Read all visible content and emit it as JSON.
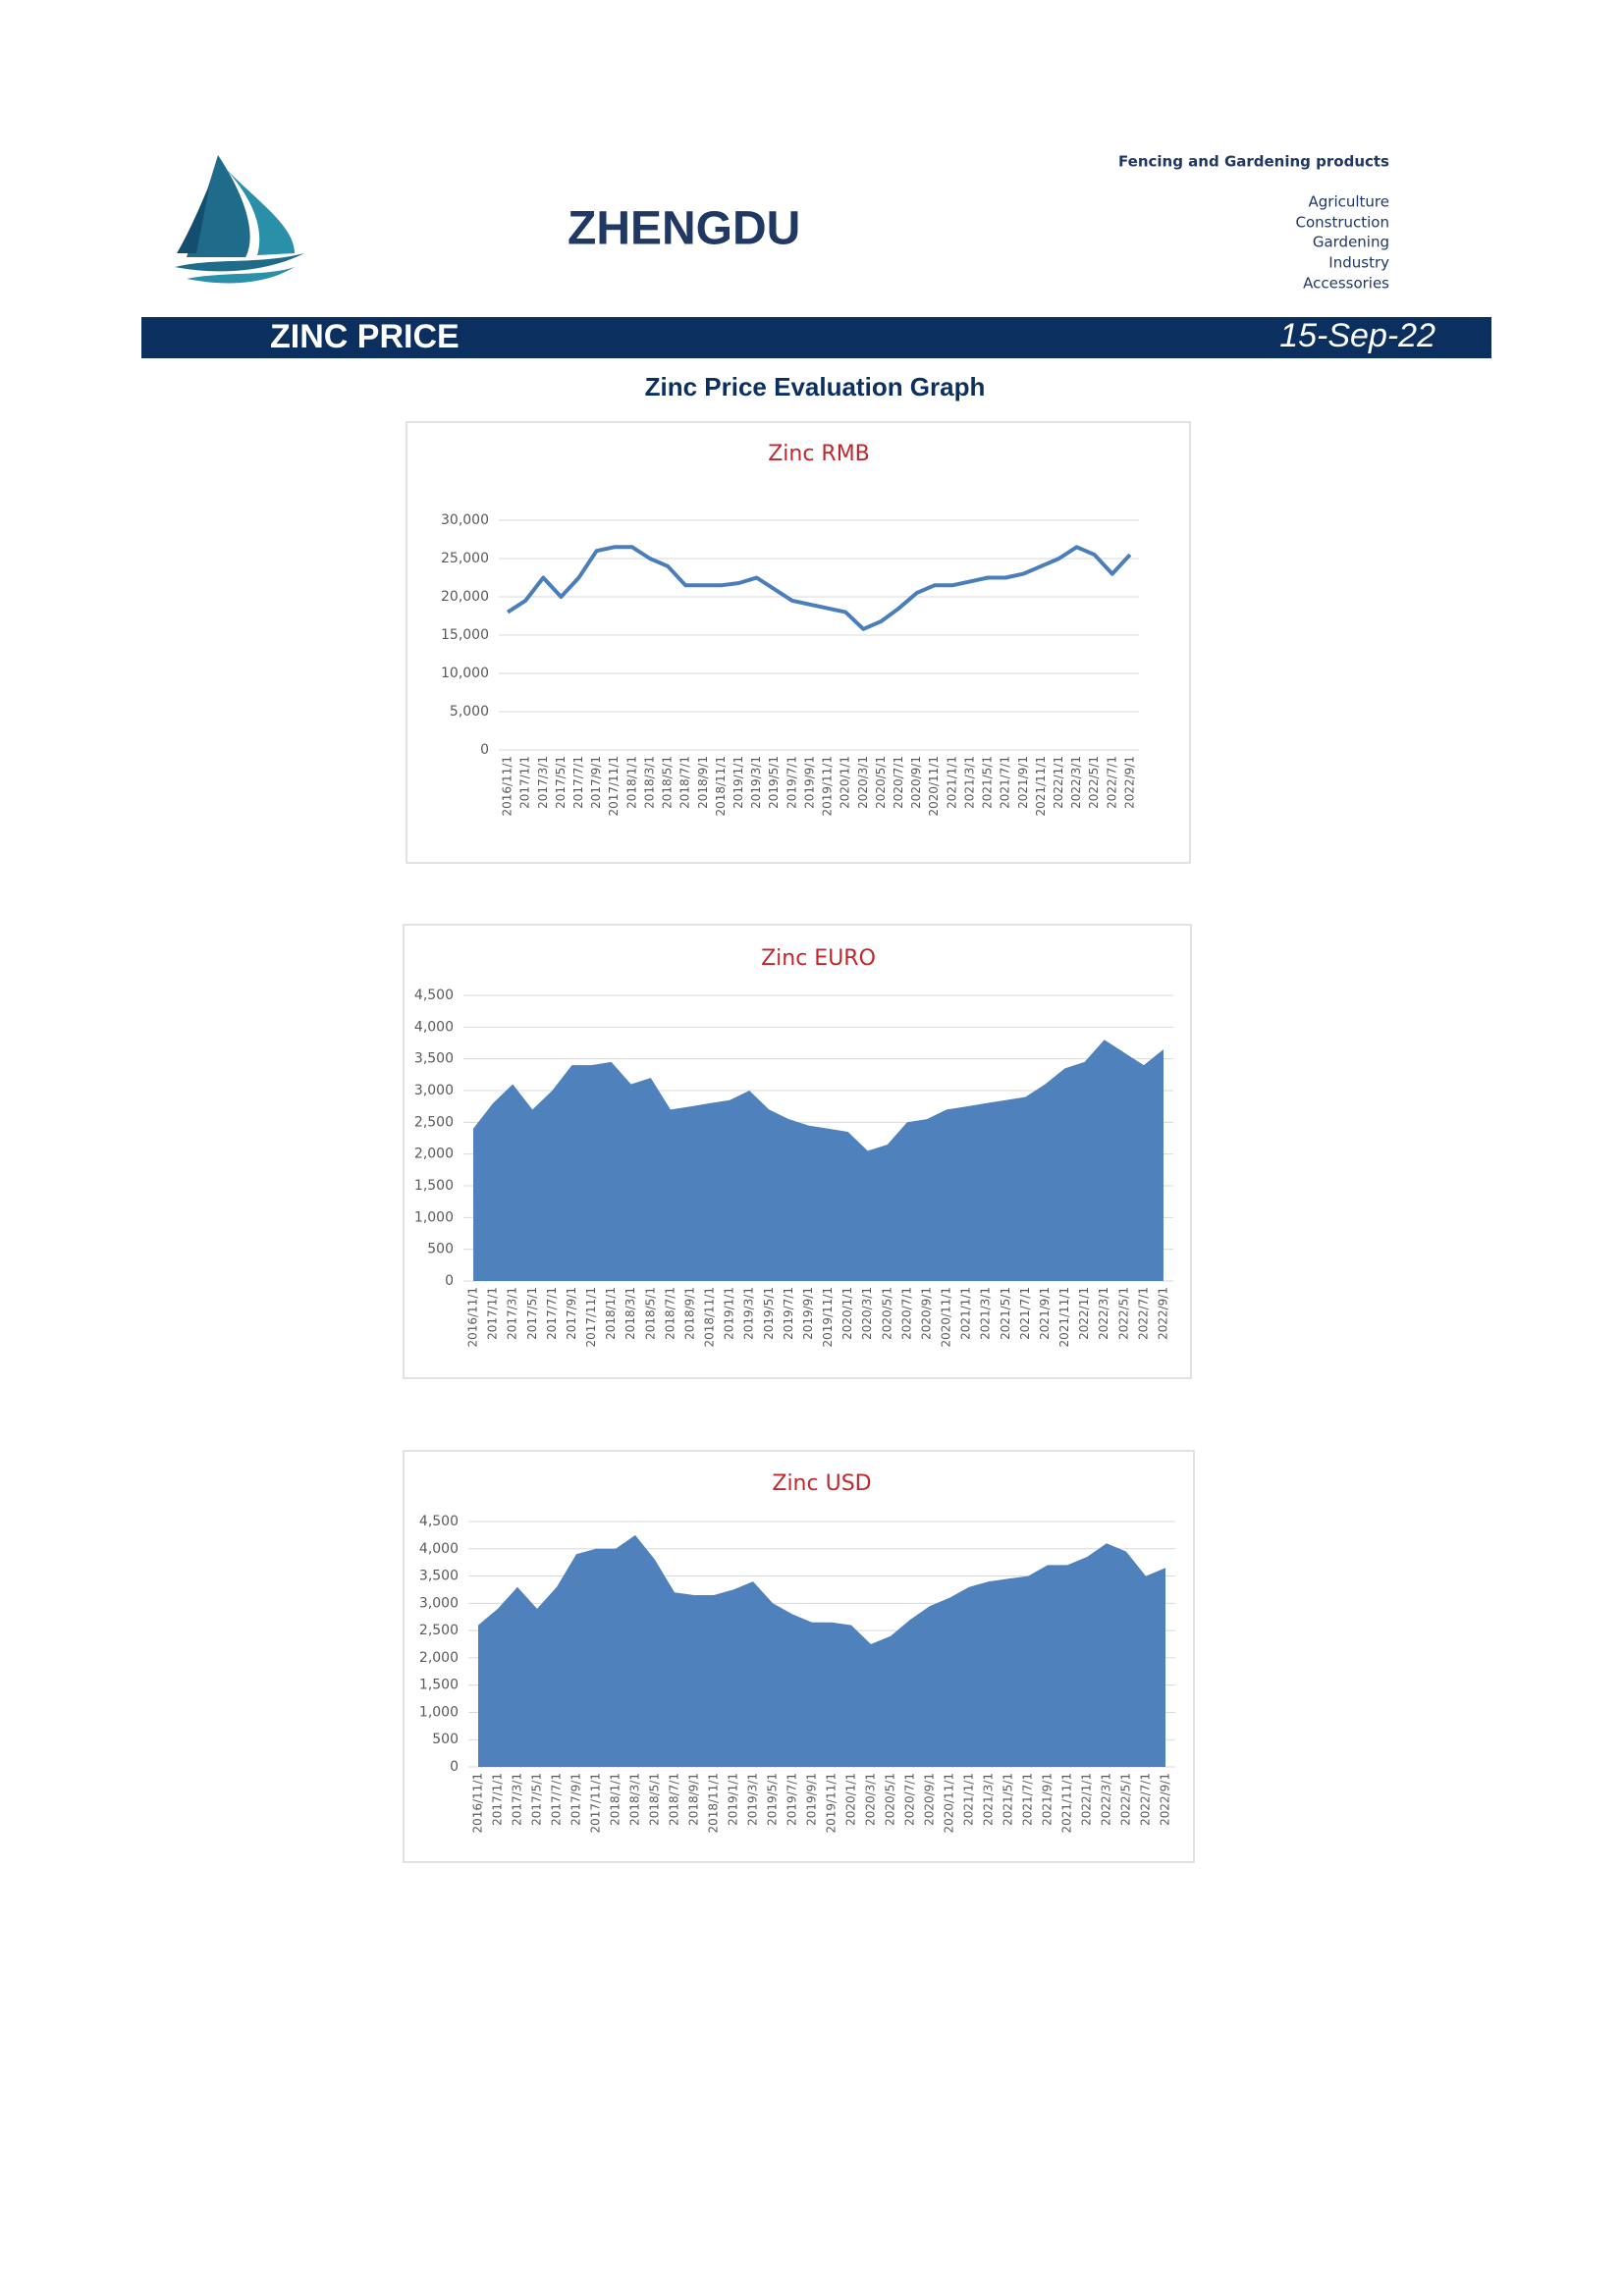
{
  "header": {
    "brand": "ZHENGDU",
    "tagline": "Fencing and Gardening products",
    "sectors": [
      "Agriculture",
      "Construction",
      "Gardening",
      "Industry",
      "Accessories"
    ],
    "banner_title": "ZINC PRICE",
    "banner_date": "15-Sep-22",
    "section_title": "Zinc Price Evaluation Graph"
  },
  "chart_data": [
    {
      "type": "line",
      "title": "Zinc RMB",
      "color": "#4a7ebb",
      "grid": true,
      "categories": [
        "2016/11/1",
        "2017/1/1",
        "2017/3/1",
        "2017/5/1",
        "2017/7/1",
        "2017/9/1",
        "2017/11/1",
        "2018/1/1",
        "2018/3/1",
        "2018/5/1",
        "2018/7/1",
        "2018/9/1",
        "2018/11/1",
        "2019/1/1",
        "2019/3/1",
        "2019/5/1",
        "2019/7/1",
        "2019/9/1",
        "2019/11/1",
        "2020/1/1",
        "2020/3/1",
        "2020/5/1",
        "2020/7/1",
        "2020/9/1",
        "2020/11/1",
        "2021/1/1",
        "2021/3/1",
        "2021/5/1",
        "2021/7/1",
        "2021/9/1",
        "2021/11/1",
        "2022/1/1",
        "2022/3/1",
        "2022/5/1",
        "2022/7/1",
        "2022/9/1"
      ],
      "values": [
        18000,
        19500,
        22500,
        20000,
        22500,
        26000,
        26500,
        26500,
        25000,
        24000,
        21500,
        21500,
        21500,
        21800,
        22500,
        21000,
        19500,
        19000,
        18500,
        18000,
        15800,
        16800,
        18500,
        20500,
        21500,
        21500,
        22000,
        22500,
        22500,
        23000,
        24000,
        25000,
        26500,
        25500,
        23000,
        25500
      ],
      "ylim": [
        0,
        30000
      ],
      "yticks": [
        0,
        {
          "value": 5000,
          "label": "5,000"
        },
        {
          "value": 10000,
          "label": "10,000"
        },
        {
          "value": 15000,
          "label": "15,000"
        },
        {
          "value": 20000,
          "label": "20,000"
        },
        {
          "value": 25000,
          "label": "25,000"
        },
        {
          "value": 30000,
          "label": "30,000"
        }
      ]
    },
    {
      "type": "area",
      "title": "Zinc EURO",
      "color": "#4f81bd",
      "grid": true,
      "categories": [
        "2016/11/1",
        "2017/1/1",
        "2017/3/1",
        "2017/5/1",
        "2017/7/1",
        "2017/9/1",
        "2017/11/1",
        "2018/1/1",
        "2018/3/1",
        "2018/5/1",
        "2018/7/1",
        "2018/9/1",
        "2018/11/1",
        "2019/1/1",
        "2019/3/1",
        "2019/5/1",
        "2019/7/1",
        "2019/9/1",
        "2019/11/1",
        "2020/1/1",
        "2020/3/1",
        "2020/5/1",
        "2020/7/1",
        "2020/9/1",
        "2020/11/1",
        "2021/1/1",
        "2021/3/1",
        "2021/5/1",
        "2021/7/1",
        "2021/9/1",
        "2021/11/1",
        "2022/1/1",
        "2022/3/1",
        "2022/5/1",
        "2022/7/1",
        "2022/9/1"
      ],
      "values": [
        2400,
        2800,
        3100,
        2700,
        3000,
        3400,
        3400,
        3450,
        3100,
        3200,
        2700,
        2750,
        2800,
        2850,
        3000,
        2700,
        2550,
        2450,
        2400,
        2350,
        2050,
        2150,
        2500,
        2550,
        2700,
        2750,
        2800,
        2850,
        2900,
        3100,
        3350,
        3450,
        3800,
        3600,
        3400,
        3650
      ],
      "ylim": [
        0,
        4500
      ],
      "yticks": [
        0,
        500,
        {
          "value": 1000,
          "label": "1,000"
        },
        {
          "value": 1500,
          "label": "1,500"
        },
        {
          "value": 2000,
          "label": "2,000"
        },
        {
          "value": 2500,
          "label": "2,500"
        },
        {
          "value": 3000,
          "label": "3,000"
        },
        {
          "value": 3500,
          "label": "3,500"
        },
        {
          "value": 4000,
          "label": "4,000"
        },
        {
          "value": 4500,
          "label": "4,500"
        }
      ]
    },
    {
      "type": "area",
      "title": "Zinc USD",
      "color": "#4f81bd",
      "grid": true,
      "categories": [
        "2016/11/1",
        "2017/1/1",
        "2017/3/1",
        "2017/5/1",
        "2017/7/1",
        "2017/9/1",
        "2017/11/1",
        "2018/1/1",
        "2018/3/1",
        "2018/5/1",
        "2018/7/1",
        "2018/9/1",
        "2018/11/1",
        "2019/1/1",
        "2019/3/1",
        "2019/5/1",
        "2019/7/1",
        "2019/9/1",
        "2019/11/1",
        "2020/1/1",
        "2020/3/1",
        "2020/5/1",
        "2020/7/1",
        "2020/9/1",
        "2020/11/1",
        "2021/1/1",
        "2021/3/1",
        "2021/5/1",
        "2021/7/1",
        "2021/9/1",
        "2021/11/1",
        "2022/1/1",
        "2022/3/1",
        "2022/5/1",
        "2022/7/1",
        "2022/9/1"
      ],
      "values": [
        2600,
        2900,
        3300,
        2900,
        3300,
        3900,
        4000,
        4000,
        4250,
        3800,
        3200,
        3150,
        3150,
        3250,
        3400,
        3000,
        2800,
        2650,
        2650,
        2600,
        2250,
        2400,
        2700,
        2950,
        3100,
        3300,
        3400,
        3450,
        3500,
        3700,
        3700,
        3850,
        4100,
        3950,
        3500,
        3650
      ],
      "ylim": [
        0,
        4500
      ],
      "yticks": [
        0,
        500,
        {
          "value": 1000,
          "label": "1,000"
        },
        {
          "value": 1500,
          "label": "1,500"
        },
        {
          "value": 2000,
          "label": "2,000"
        },
        {
          "value": 2500,
          "label": "2,500"
        },
        {
          "value": 3000,
          "label": "3,000"
        },
        {
          "value": 3500,
          "label": "3,500"
        },
        {
          "value": 4000,
          "label": "4,000"
        },
        {
          "value": 4500,
          "label": "4,500"
        }
      ]
    }
  ]
}
